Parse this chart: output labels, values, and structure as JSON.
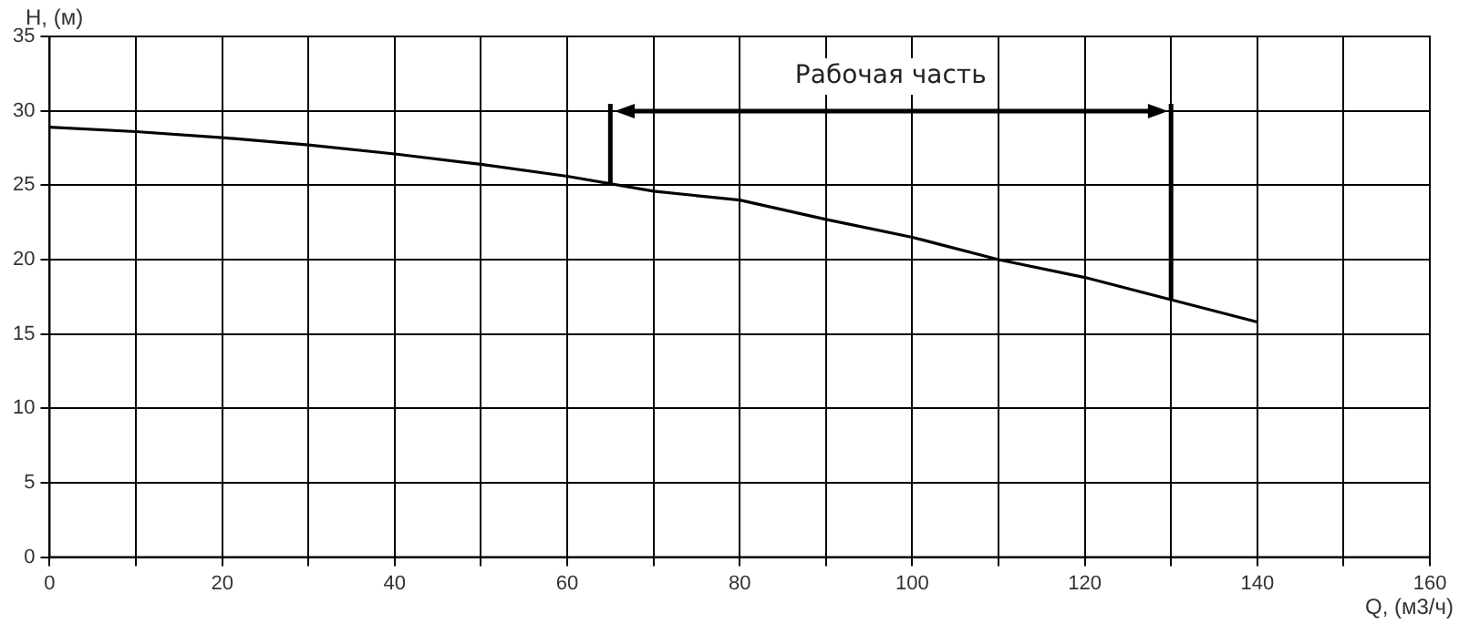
{
  "chart_data": {
    "type": "line",
    "xlabel": "Q, (м3/ч)",
    "ylabel": "H, (м)",
    "x": [
      0,
      10,
      20,
      30,
      40,
      50,
      60,
      70,
      80,
      90,
      100,
      110,
      120,
      130,
      140
    ],
    "series": [
      {
        "color": "#000000",
        "values": [
          28.9,
          28.6,
          28.2,
          27.7,
          27.1,
          26.4,
          25.6,
          24.6,
          24.0,
          22.7,
          21.5,
          20.0,
          18.8,
          17.3,
          15.8
        ]
      }
    ],
    "xlim": [
      0,
      160
    ],
    "xticks": [
      0,
      {
        "value": 10,
        "label": null
      },
      20,
      {
        "value": 30,
        "label": null
      },
      40,
      {
        "value": 50,
        "label": null
      },
      60,
      {
        "value": 70,
        "label": null
      },
      80,
      {
        "value": 90,
        "label": null
      },
      100,
      {
        "value": 110,
        "label": null
      },
      120,
      {
        "value": 130,
        "label": null
      },
      140,
      {
        "value": 150,
        "label": null
      },
      160
    ],
    "ylim": [
      0,
      35
    ],
    "yticks": [
      0,
      5,
      10,
      15,
      20,
      25,
      30,
      35
    ],
    "ref_lines": [
      {
        "axis": "x",
        "value": 65
      },
      {
        "axis": "x",
        "value": 130
      }
    ],
    "annotations": [
      "Рабочая часть"
    ],
    "grid": true,
    "legend": false,
    "marker": "none",
    "line_style": "solid"
  }
}
